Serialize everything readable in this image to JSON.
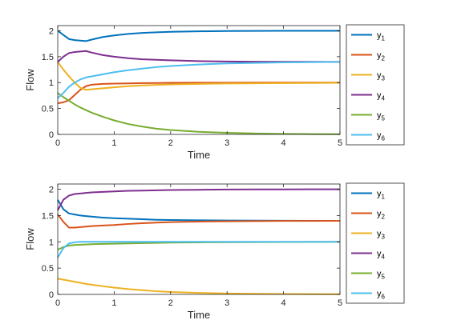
{
  "chart_data": [
    {
      "type": "line",
      "title": "",
      "xlabel": "Time",
      "ylabel": "Flow",
      "xlim": [
        0,
        5
      ],
      "ylim": [
        0,
        2.1
      ],
      "xticks": [
        "0",
        "1",
        "2",
        "3",
        "4",
        "5"
      ],
      "yticks": [
        "0",
        "0.5",
        "1",
        "1.5",
        "2"
      ],
      "grid": false,
      "legend_position": "outside-right",
      "x": [
        0,
        0.1,
        0.2,
        0.3,
        0.4,
        0.5,
        0.6,
        0.8,
        1.0,
        1.25,
        1.5,
        1.75,
        2.0,
        2.5,
        3.0,
        3.5,
        4.0,
        4.5,
        5.0
      ],
      "series": [
        {
          "name": "y",
          "sub": "1",
          "color": "#0072BD",
          "values": [
            2.0,
            1.92,
            1.84,
            1.82,
            1.81,
            1.8,
            1.83,
            1.88,
            1.91,
            1.94,
            1.96,
            1.97,
            1.98,
            1.99,
            1.995,
            1.998,
            2.0,
            2.0,
            2.0
          ]
        },
        {
          "name": "y",
          "sub": "2",
          "color": "#D95319",
          "values": [
            0.6,
            0.62,
            0.66,
            0.76,
            0.86,
            0.93,
            0.96,
            0.975,
            0.98,
            0.985,
            0.99,
            0.993,
            0.995,
            0.997,
            0.998,
            0.999,
            1.0,
            1.0,
            1.0
          ]
        },
        {
          "name": "y",
          "sub": "3",
          "color": "#EDB120",
          "values": [
            1.4,
            1.25,
            1.12,
            1.0,
            0.9,
            0.86,
            0.87,
            0.89,
            0.91,
            0.93,
            0.945,
            0.955,
            0.965,
            0.975,
            0.982,
            0.987,
            0.99,
            0.993,
            0.995
          ]
        },
        {
          "name": "y",
          "sub": "4",
          "color": "#7E2F8E",
          "values": [
            1.4,
            1.5,
            1.57,
            1.59,
            1.6,
            1.61,
            1.58,
            1.53,
            1.5,
            1.47,
            1.45,
            1.44,
            1.43,
            1.415,
            1.408,
            1.404,
            1.402,
            1.401,
            1.4
          ]
        },
        {
          "name": "y",
          "sub": "5",
          "color": "#77AC30",
          "values": [
            0.8,
            0.72,
            0.65,
            0.58,
            0.52,
            0.47,
            0.42,
            0.34,
            0.27,
            0.2,
            0.15,
            0.11,
            0.085,
            0.05,
            0.03,
            0.018,
            0.01,
            0.006,
            0.004
          ]
        },
        {
          "name": "y",
          "sub": "6",
          "color": "#4DBEEE",
          "values": [
            0.7,
            0.8,
            0.92,
            1.0,
            1.06,
            1.1,
            1.12,
            1.16,
            1.2,
            1.24,
            1.27,
            1.3,
            1.32,
            1.35,
            1.37,
            1.38,
            1.39,
            1.395,
            1.4
          ]
        }
      ]
    },
    {
      "type": "line",
      "title": "",
      "xlabel": "Time",
      "ylabel": "Flow",
      "xlim": [
        0,
        5
      ],
      "ylim": [
        0,
        2.1
      ],
      "xticks": [
        "0",
        "1",
        "2",
        "3",
        "4",
        "5"
      ],
      "yticks": [
        "0",
        "0.5",
        "1",
        "1.5",
        "2"
      ],
      "grid": false,
      "legend_position": "outside-right",
      "x": [
        0,
        0.1,
        0.2,
        0.3,
        0.4,
        0.5,
        0.6,
        0.8,
        1.0,
        1.25,
        1.5,
        1.75,
        2.0,
        2.5,
        3.0,
        3.5,
        4.0,
        4.5,
        5.0
      ],
      "series": [
        {
          "name": "y",
          "sub": "1",
          "color": "#0072BD",
          "values": [
            1.8,
            1.62,
            1.54,
            1.52,
            1.5,
            1.49,
            1.48,
            1.46,
            1.45,
            1.44,
            1.43,
            1.42,
            1.415,
            1.41,
            1.405,
            1.403,
            1.401,
            1.4,
            1.4
          ]
        },
        {
          "name": "y",
          "sub": "2",
          "color": "#D95319",
          "values": [
            1.52,
            1.38,
            1.27,
            1.27,
            1.28,
            1.29,
            1.3,
            1.31,
            1.32,
            1.34,
            1.355,
            1.365,
            1.375,
            1.385,
            1.39,
            1.395,
            1.398,
            1.399,
            1.4
          ]
        },
        {
          "name": "y",
          "sub": "3",
          "color": "#EDB120",
          "values": [
            0.3,
            0.28,
            0.26,
            0.24,
            0.22,
            0.2,
            0.185,
            0.155,
            0.13,
            0.1,
            0.08,
            0.06,
            0.045,
            0.028,
            0.018,
            0.011,
            0.007,
            0.005,
            0.003
          ]
        },
        {
          "name": "y",
          "sub": "4",
          "color": "#7E2F8E",
          "values": [
            1.6,
            1.8,
            1.88,
            1.91,
            1.92,
            1.93,
            1.94,
            1.95,
            1.96,
            1.97,
            1.975,
            1.98,
            1.985,
            1.99,
            1.995,
            1.997,
            1.998,
            1.999,
            2.0
          ]
        },
        {
          "name": "y",
          "sub": "5",
          "color": "#77AC30",
          "values": [
            0.85,
            0.9,
            0.93,
            0.94,
            0.945,
            0.95,
            0.955,
            0.96,
            0.965,
            0.97,
            0.975,
            0.98,
            0.985,
            0.99,
            0.993,
            0.995,
            0.997,
            0.999,
            1.0
          ]
        },
        {
          "name": "y",
          "sub": "6",
          "color": "#4DBEEE",
          "values": [
            0.7,
            0.88,
            0.97,
            0.99,
            1.0,
            1.0,
            1.0,
            1.0,
            1.0,
            1.0,
            1.0,
            1.0,
            1.0,
            1.0,
            1.0,
            1.0,
            1.0,
            1.0,
            1.0
          ]
        }
      ]
    }
  ]
}
